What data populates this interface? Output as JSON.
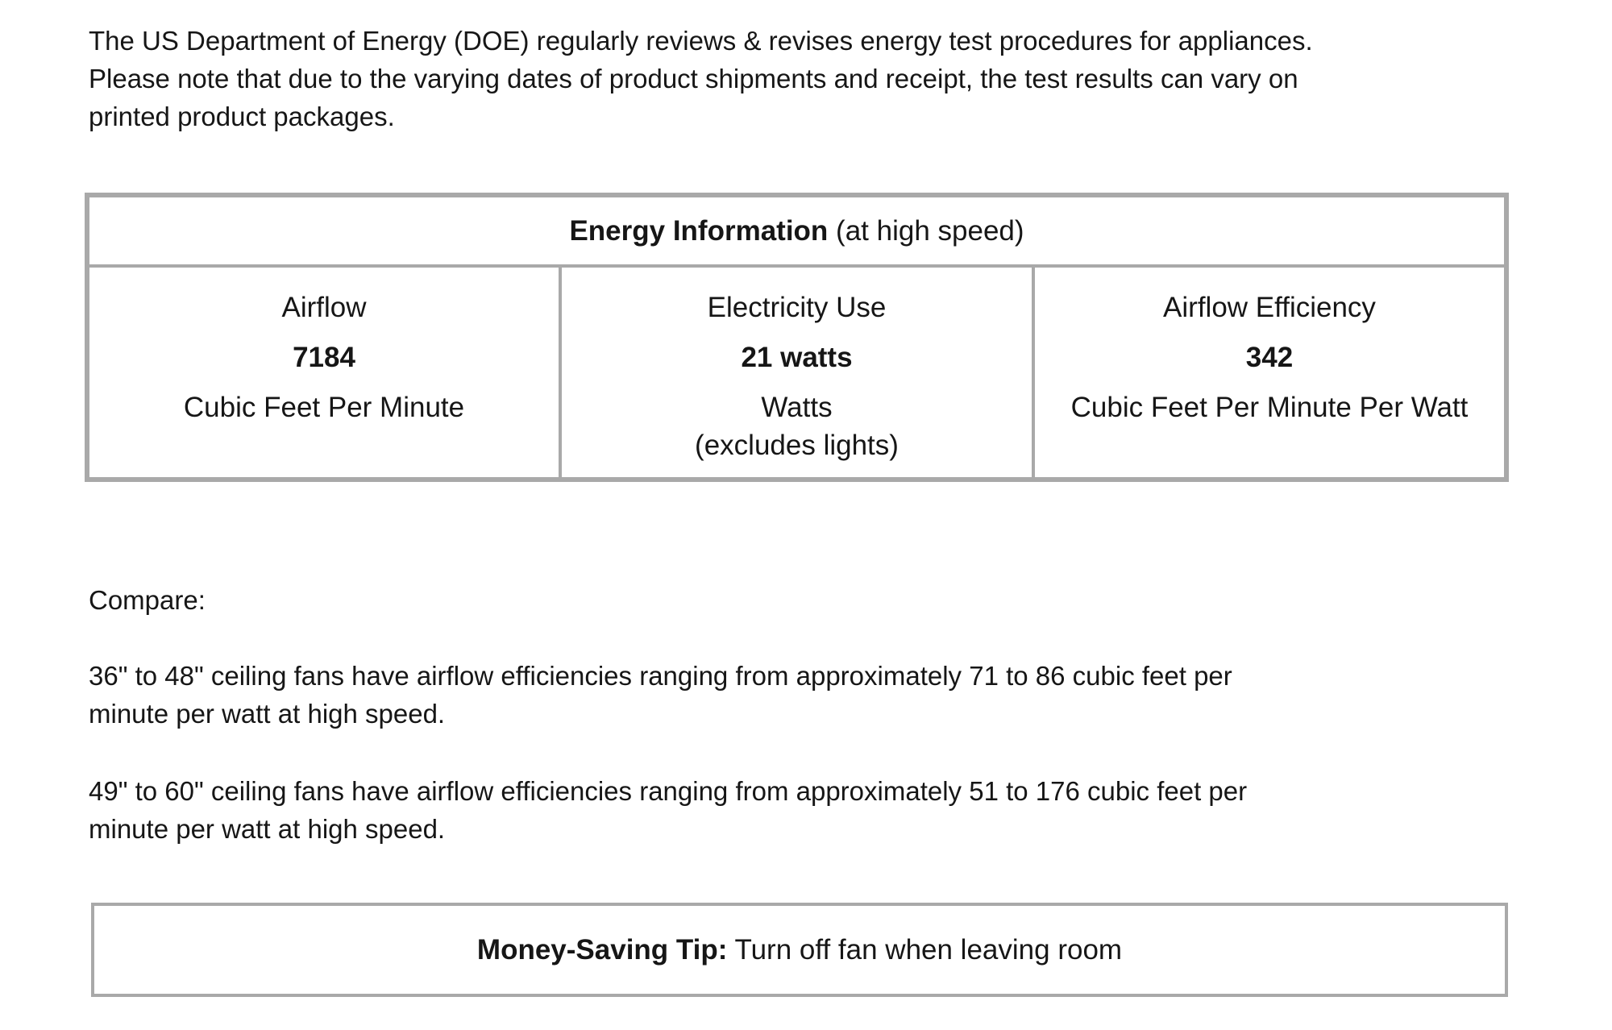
{
  "colors": {
    "border_gray": "#a9a9a9",
    "text": "#161616",
    "background": "#ffffff"
  },
  "intro_paragraph": "The US Department of Energy (DOE) regularly reviews & revises energy test procedures for appliances.\nPlease note that due to the varying dates of product shipments and receipt, the test results can vary on\nprinted product packages.",
  "energy_table": {
    "title_bold": "Energy Information",
    "title_suffix": " (at high speed)",
    "columns": [
      {
        "label": "Airflow",
        "value": "7184",
        "unit": "Cubic Feet Per Minute"
      },
      {
        "label": "Electricity Use",
        "value": "21 watts",
        "unit": "Watts\n(excludes lights)"
      },
      {
        "label": "Airflow Efficiency",
        "value": "342",
        "unit": "Cubic Feet Per Minute Per Watt"
      }
    ]
  },
  "compare": {
    "heading": "Compare:",
    "para_small_fans": "36\" to 48\" ceiling fans have airflow efficiencies ranging from approximately 71 to 86 cubic feet per\nminute per watt at high speed.",
    "para_large_fans": "49\" to 60\" ceiling fans have airflow efficiencies ranging from approximately 51 to 176 cubic feet per\nminute per watt at high speed."
  },
  "tip": {
    "label_bold": "Money-Saving Tip:",
    "text": " Turn off fan when leaving room"
  }
}
